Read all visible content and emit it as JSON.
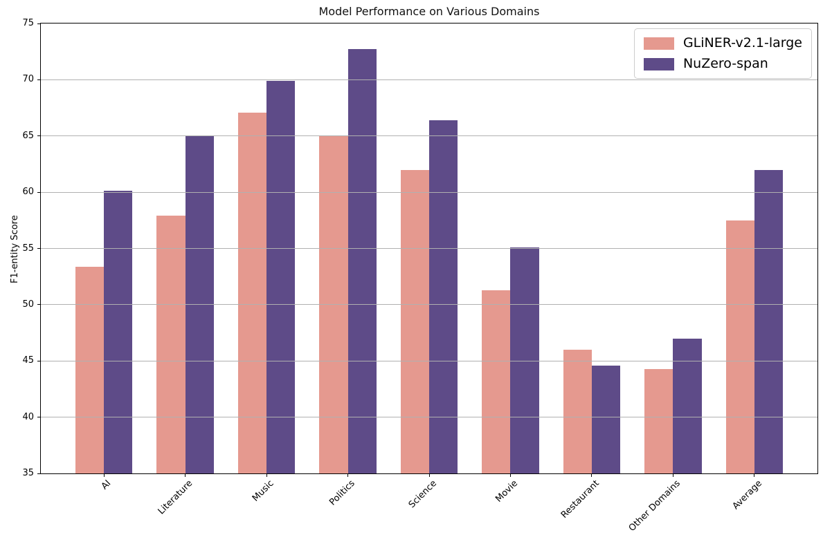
{
  "figure": {
    "background": "#ffffff"
  },
  "chart_data": {
    "type": "bar",
    "title": "Model Performance on Various Domains",
    "xlabel": "",
    "ylabel": "F1-entity Score",
    "ylim": [
      35,
      75
    ],
    "yticks": [
      35,
      40,
      45,
      50,
      55,
      60,
      65,
      70,
      75
    ],
    "xlim": [
      -0.775,
      8.775
    ],
    "bar_width": 0.35,
    "grid": true,
    "grid_color": "#b0b0b0",
    "axis_color": "#000000",
    "legend_position": "upper right",
    "categories": [
      "AI",
      "Literature",
      "Music",
      "Politics",
      "Science",
      "Movie",
      "Restaurant",
      "Other Domains",
      "Average"
    ],
    "series": [
      {
        "name": "GLiNER-v2.1-large",
        "color": "#e5998f",
        "values": [
          53.4,
          57.9,
          67.1,
          65.0,
          62.0,
          51.3,
          46.0,
          44.3,
          57.5
        ]
      },
      {
        "name": "NuZero-span",
        "color": "#5e4b88",
        "values": [
          60.1,
          65.0,
          69.9,
          72.7,
          66.4,
          55.1,
          44.6,
          47.0,
          62.0
        ]
      }
    ]
  }
}
